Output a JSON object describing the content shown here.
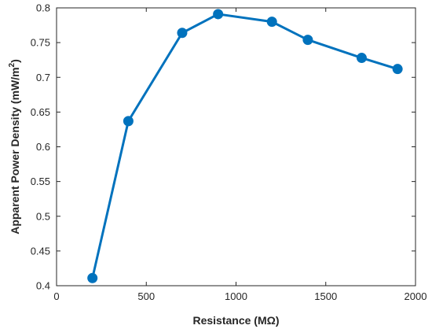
{
  "chart_data": {
    "type": "line",
    "title": "",
    "xlabel": "Resistance (MΩ)",
    "ylabel": "Apparent Power Density (mW/m²)",
    "xlim": [
      0,
      2000
    ],
    "ylim": [
      0.4,
      0.8
    ],
    "xticks": [
      0,
      500,
      1000,
      1500,
      2000
    ],
    "yticks": [
      0.4,
      0.45,
      0.5,
      0.55,
      0.6,
      0.65,
      0.7,
      0.75,
      0.8
    ],
    "xtick_labels": [
      "0",
      "500",
      "1000",
      "1500",
      "2000"
    ],
    "ytick_labels": [
      "0.4",
      "0.45",
      "0.5",
      "0.55",
      "0.6",
      "0.65",
      "0.7",
      "0.75",
      "0.8"
    ],
    "grid": false,
    "legend": "none",
    "series": [
      {
        "color": "#0072bd",
        "x": [
          200,
          400,
          700,
          900,
          1200,
          1400,
          1700,
          1900
        ],
        "y": [
          0.411,
          0.637,
          0.764,
          0.791,
          0.78,
          0.754,
          0.728,
          0.712
        ]
      }
    ]
  }
}
